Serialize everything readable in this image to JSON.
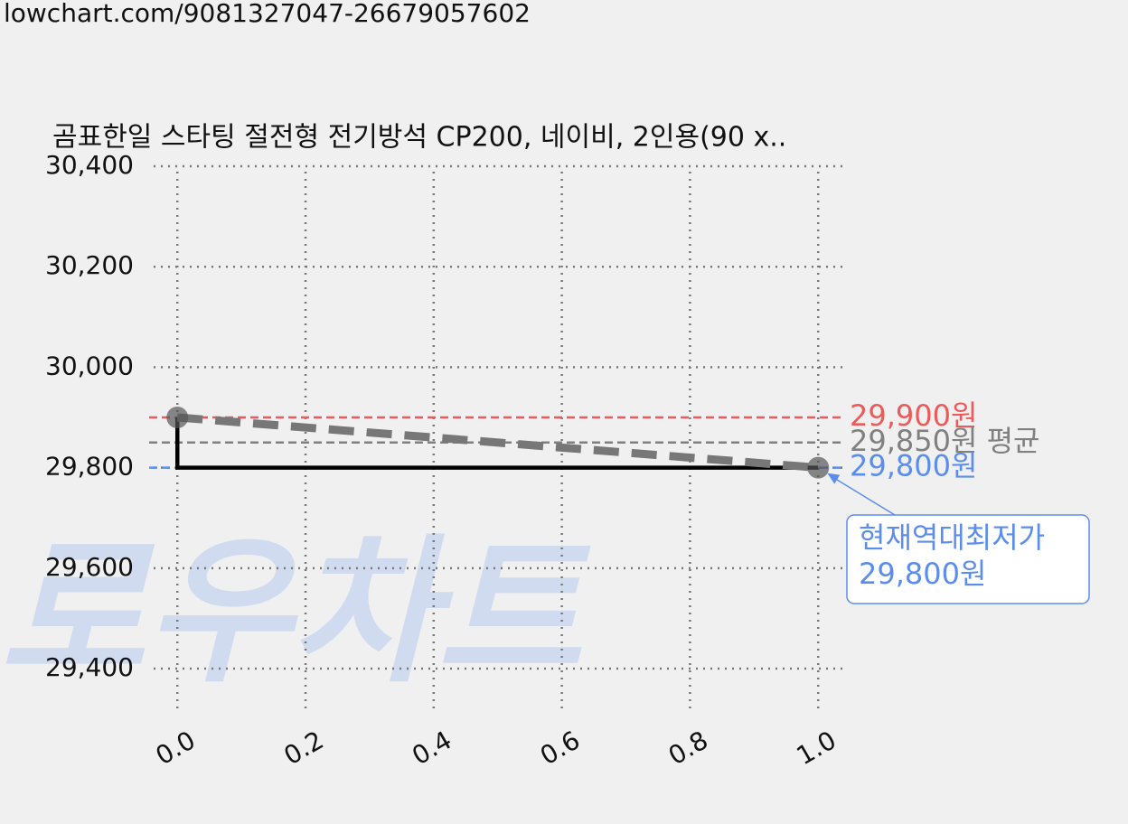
{
  "url": "lowchart.com/9081327047-26679057602",
  "watermark": "로우차트",
  "chart_data": {
    "type": "line",
    "title": "곰표한일 스타팅 절전형 전기방석 CP200, 네이비, 2인용(90 x..",
    "x": [
      0,
      1
    ],
    "series": [
      {
        "values": [
          29900,
          29800
        ],
        "color": "#000000",
        "style": "step"
      },
      {
        "values": [
          29900,
          29800
        ],
        "color": "#777777",
        "style": "dashed",
        "marker_color": "#555555"
      }
    ],
    "xlim": [
      -0.037,
      1.042
    ],
    "ylim": [
      29320,
      30400
    ],
    "xticks": [
      {
        "value": 0,
        "label": "0.0"
      },
      0.2,
      0.4,
      0.6,
      0.8,
      {
        "value": 1,
        "label": "1.0"
      }
    ],
    "yticks": [
      {
        "value": 29400,
        "label": "29,400"
      },
      {
        "value": 29600,
        "label": "29,600"
      },
      {
        "value": 29800,
        "label": "29,800"
      },
      {
        "value": 30000,
        "label": "30,000"
      },
      {
        "value": 30200,
        "label": "30,200"
      },
      {
        "value": 30400,
        "label": "30,400"
      }
    ],
    "grid": true,
    "reference_lines": [
      {
        "value": 29900,
        "label": "29,900원",
        "color": "#ee5a5a"
      },
      {
        "value": 29850,
        "label": "29,850원 평균",
        "color": "#808080"
      },
      {
        "value": 29800,
        "label": "29,800원",
        "color": "#5b8def"
      }
    ],
    "annotation": {
      "lines": [
        "현재역대최저가",
        "29,800원"
      ],
      "x": 1,
      "y": 29800,
      "color": "#5b8def"
    }
  }
}
